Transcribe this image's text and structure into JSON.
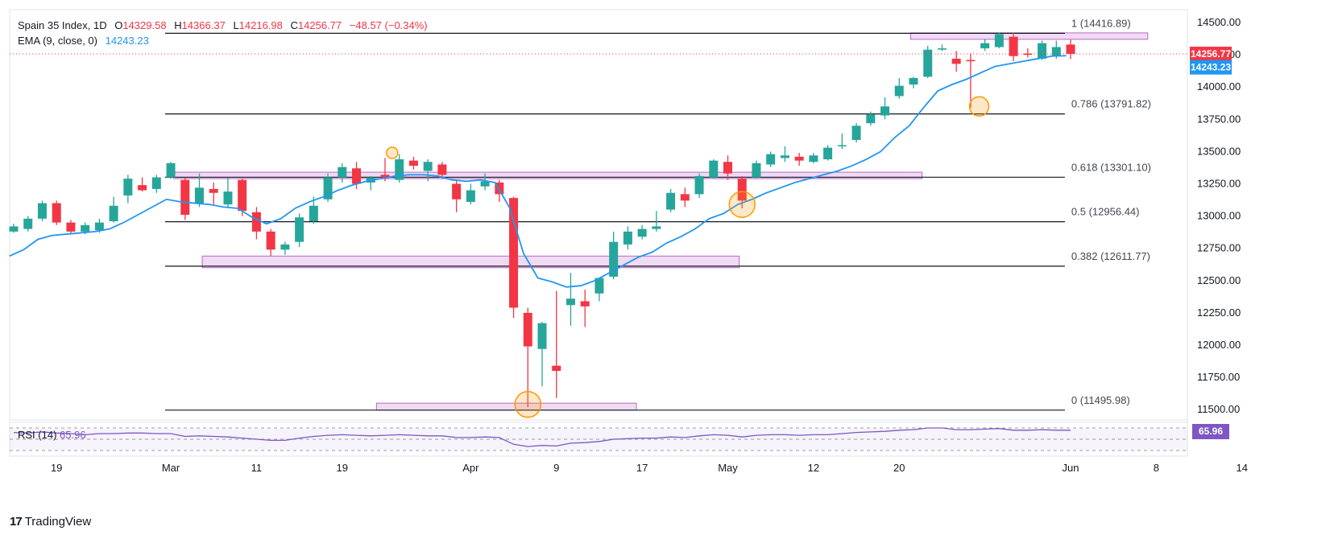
{
  "legend": {
    "symbol": "Spain 35 Index, 1D",
    "open_label": "O",
    "open": "14329.58",
    "high_label": "H",
    "high": "14366.37",
    "low_label": "L",
    "low": "14216.98",
    "close_label": "C",
    "close": "14256.77",
    "change": "−48.57 (−0.34%)",
    "ema_label": "EMA (9, close, 0)",
    "ema_value": "14243.23"
  },
  "rsi": {
    "label": "RSI (14)",
    "value": "65.96",
    "badge": "65.96"
  },
  "footer": {
    "brand": "TradingView",
    "logo_glyph": "17"
  },
  "colors": {
    "up": "#26a69a",
    "down": "#f23645",
    "ema": "#2196f3",
    "rsi": "#7e57c2",
    "zone": "#e1bee7",
    "zone_border": "#ba68c8",
    "highlight": "#ff9800",
    "fib_line": "#131722",
    "price_line": "#f23645"
  },
  "chart_data": {
    "type": "candlestick",
    "title": "Spain 35 Index, 1D",
    "ylim": [
      11420,
      14600
    ],
    "y_ticks": [
      11500,
      11750,
      12000,
      12250,
      12500,
      12750,
      13000,
      13250,
      13500,
      13750,
      14000,
      14250,
      14500
    ],
    "y_tick_labels": [
      "11500.00",
      "11750.00",
      "12000.00",
      "12250.00",
      "12500.00",
      "12750.00",
      "13000.00",
      "13250.00",
      "13500.00",
      "13750.00",
      "14000.00",
      "14250.00",
      "14500.00"
    ],
    "x_tick_labels": [
      "19",
      "Mar",
      "11",
      "19",
      "Apr",
      "9",
      "17",
      "May",
      "12",
      "20",
      "Jun",
      "8",
      "14"
    ],
    "x_tick_index": [
      3,
      11,
      17,
      23,
      32,
      38,
      44,
      50,
      56,
      62,
      74,
      80,
      86
    ],
    "price_badge": "14256.77",
    "ema_badge": "14243.23",
    "fib_levels": [
      {
        "label": "1 (14416.89)",
        "value": 14416.89
      },
      {
        "label": "0.786 (13791.82)",
        "value": 13791.82
      },
      {
        "label": "0.618 (13301.10)",
        "value": 13301.1
      },
      {
        "label": "0.5 (12956.44)",
        "value": 12956.44
      },
      {
        "label": "0.382 (12611.77)",
        "value": 12611.77
      },
      {
        "label": "0 (11495.98)",
        "value": 11495.98
      }
    ],
    "zones": [
      {
        "x0": 62.8,
        "x1": 79.4,
        "y0": 14370,
        "y1": 14420
      },
      {
        "x0": 11.2,
        "x1": 63.6,
        "y0": 13290,
        "y1": 13340
      },
      {
        "x0": 13.2,
        "x1": 50.8,
        "y0": 12600,
        "y1": 12690
      },
      {
        "x0": 25.4,
        "x1": 43.6,
        "y0": 11495,
        "y1": 11550
      }
    ],
    "highlights": [
      {
        "x": 26.5,
        "y": 13490,
        "r": 7
      },
      {
        "x": 36,
        "y": 11540,
        "r": 16
      },
      {
        "x": 51,
        "y": 13090,
        "r": 16
      },
      {
        "x": 67.6,
        "y": 13850,
        "r": 12
      }
    ],
    "candles": [
      {
        "o": 12880,
        "h": 12940,
        "l": 12870,
        "c": 12920
      },
      {
        "o": 12900,
        "h": 13000,
        "l": 12880,
        "c": 12980
      },
      {
        "o": 12980,
        "h": 13120,
        "l": 12960,
        "c": 13100
      },
      {
        "o": 13100,
        "h": 13120,
        "l": 12930,
        "c": 12950
      },
      {
        "o": 12950,
        "h": 12970,
        "l": 12860,
        "c": 12880
      },
      {
        "o": 12880,
        "h": 12950,
        "l": 12860,
        "c": 12930
      },
      {
        "o": 12890,
        "h": 12980,
        "l": 12870,
        "c": 12950
      },
      {
        "o": 12960,
        "h": 13150,
        "l": 12950,
        "c": 13080
      },
      {
        "o": 13160,
        "h": 13320,
        "l": 13100,
        "c": 13290
      },
      {
        "o": 13240,
        "h": 13300,
        "l": 13190,
        "c": 13200
      },
      {
        "o": 13210,
        "h": 13320,
        "l": 13180,
        "c": 13300
      },
      {
        "o": 13300,
        "h": 13420,
        "l": 13290,
        "c": 13410
      },
      {
        "o": 13280,
        "h": 13300,
        "l": 12970,
        "c": 13010
      },
      {
        "o": 13100,
        "h": 13330,
        "l": 13070,
        "c": 13220
      },
      {
        "o": 13210,
        "h": 13260,
        "l": 13090,
        "c": 13180
      },
      {
        "o": 13090,
        "h": 13300,
        "l": 13070,
        "c": 13190
      },
      {
        "o": 13280,
        "h": 13290,
        "l": 13000,
        "c": 13040
      },
      {
        "o": 13030,
        "h": 13070,
        "l": 12820,
        "c": 12880
      },
      {
        "o": 12880,
        "h": 12900,
        "l": 12690,
        "c": 12740
      },
      {
        "o": 12740,
        "h": 12800,
        "l": 12700,
        "c": 12780
      },
      {
        "o": 12800,
        "h": 13020,
        "l": 12760,
        "c": 12990
      },
      {
        "o": 12960,
        "h": 13150,
        "l": 12940,
        "c": 13080
      },
      {
        "o": 13130,
        "h": 13330,
        "l": 13110,
        "c": 13300
      },
      {
        "o": 13300,
        "h": 13410,
        "l": 13260,
        "c": 13380
      },
      {
        "o": 13370,
        "h": 13420,
        "l": 13210,
        "c": 13250
      },
      {
        "o": 13260,
        "h": 13310,
        "l": 13200,
        "c": 13300
      },
      {
        "o": 13320,
        "h": 13450,
        "l": 13270,
        "c": 13300
      },
      {
        "o": 13280,
        "h": 13480,
        "l": 13260,
        "c": 13440
      },
      {
        "o": 13430,
        "h": 13460,
        "l": 13360,
        "c": 13390
      },
      {
        "o": 13350,
        "h": 13440,
        "l": 13270,
        "c": 13420
      },
      {
        "o": 13400,
        "h": 13420,
        "l": 13290,
        "c": 13320
      },
      {
        "o": 13250,
        "h": 13280,
        "l": 13030,
        "c": 13130
      },
      {
        "o": 13110,
        "h": 13250,
        "l": 13090,
        "c": 13200
      },
      {
        "o": 13230,
        "h": 13330,
        "l": 13200,
        "c": 13270
      },
      {
        "o": 13260,
        "h": 13280,
        "l": 13110,
        "c": 13170
      },
      {
        "o": 13140,
        "h": 13150,
        "l": 12210,
        "c": 12290
      },
      {
        "o": 12250,
        "h": 12290,
        "l": 11520,
        "c": 11990
      },
      {
        "o": 11970,
        "h": 12180,
        "l": 11680,
        "c": 12170
      },
      {
        "o": 11840,
        "h": 12420,
        "l": 11590,
        "c": 11800
      },
      {
        "o": 12310,
        "h": 12560,
        "l": 12150,
        "c": 12360
      },
      {
        "o": 12340,
        "h": 12430,
        "l": 12140,
        "c": 12300
      },
      {
        "o": 12400,
        "h": 12520,
        "l": 12340,
        "c": 12520
      },
      {
        "o": 12530,
        "h": 12880,
        "l": 12510,
        "c": 12800
      },
      {
        "o": 12780,
        "h": 12920,
        "l": 12740,
        "c": 12880
      },
      {
        "o": 12840,
        "h": 12930,
        "l": 12820,
        "c": 12900
      },
      {
        "o": 12900,
        "h": 13040,
        "l": 12880,
        "c": 12920
      },
      {
        "o": 13050,
        "h": 13210,
        "l": 13030,
        "c": 13180
      },
      {
        "o": 13170,
        "h": 13220,
        "l": 13070,
        "c": 13120
      },
      {
        "o": 13170,
        "h": 13330,
        "l": 13140,
        "c": 13310
      },
      {
        "o": 13300,
        "h": 13440,
        "l": 13290,
        "c": 13430
      },
      {
        "o": 13420,
        "h": 13470,
        "l": 13280,
        "c": 13330
      },
      {
        "o": 13290,
        "h": 13310,
        "l": 13060,
        "c": 13120
      },
      {
        "o": 13300,
        "h": 13430,
        "l": 13290,
        "c": 13410
      },
      {
        "o": 13400,
        "h": 13500,
        "l": 13380,
        "c": 13480
      },
      {
        "o": 13450,
        "h": 13540,
        "l": 13420,
        "c": 13470
      },
      {
        "o": 13460,
        "h": 13490,
        "l": 13390,
        "c": 13430
      },
      {
        "o": 13420,
        "h": 13490,
        "l": 13410,
        "c": 13470
      },
      {
        "o": 13440,
        "h": 13550,
        "l": 13430,
        "c": 13530
      },
      {
        "o": 13550,
        "h": 13640,
        "l": 13520,
        "c": 13550
      },
      {
        "o": 13590,
        "h": 13720,
        "l": 13570,
        "c": 13700
      },
      {
        "o": 13720,
        "h": 13810,
        "l": 13700,
        "c": 13790
      },
      {
        "o": 13780,
        "h": 13920,
        "l": 13750,
        "c": 13850
      },
      {
        "o": 13930,
        "h": 14070,
        "l": 13910,
        "c": 14010
      },
      {
        "o": 14020,
        "h": 14080,
        "l": 13990,
        "c": 14070
      },
      {
        "o": 14080,
        "h": 14320,
        "l": 14070,
        "c": 14290
      },
      {
        "o": 14290,
        "h": 14330,
        "l": 14280,
        "c": 14300
      },
      {
        "o": 14220,
        "h": 14280,
        "l": 14120,
        "c": 14180
      },
      {
        "o": 14210,
        "h": 14260,
        "l": 13840,
        "c": 14200
      },
      {
        "o": 14300,
        "h": 14370,
        "l": 14280,
        "c": 14340
      },
      {
        "o": 14310,
        "h": 14420,
        "l": 14300,
        "c": 14410
      },
      {
        "o": 14390,
        "h": 14420,
        "l": 14200,
        "c": 14240
      },
      {
        "o": 14260,
        "h": 14300,
        "l": 14230,
        "c": 14250
      },
      {
        "o": 14220,
        "h": 14360,
        "l": 14210,
        "c": 14340
      },
      {
        "o": 14240,
        "h": 14360,
        "l": 14220,
        "c": 14310
      },
      {
        "o": 14329.58,
        "h": 14366.37,
        "l": 14216.98,
        "c": 14256.77
      }
    ],
    "ema": [
      12690,
      12740,
      12820,
      12850,
      12860,
      12870,
      12880,
      12900,
      12950,
      13010,
      13070,
      13130,
      13110,
      13100,
      13090,
      13070,
      13060,
      12990,
      12940,
      12980,
      13060,
      13110,
      13150,
      13200,
      13240,
      13270,
      13290,
      13310,
      13320,
      13320,
      13310,
      13280,
      13270,
      13280,
      13260,
      13070,
      12710,
      12520,
      12490,
      12450,
      12460,
      12500,
      12560,
      12620,
      12680,
      12720,
      12790,
      12840,
      12900,
      12980,
      13020,
      13090,
      13130,
      13180,
      13220,
      13260,
      13290,
      13320,
      13350,
      13390,
      13440,
      13500,
      13610,
      13700,
      13840,
      13970,
      14020,
      14060,
      14110,
      14160,
      14180,
      14200,
      14220,
      14240,
      14243.23
    ],
    "rsi_values": [
      62,
      61,
      63,
      61,
      60,
      58,
      60,
      60,
      61,
      61,
      60,
      60,
      55,
      56,
      55,
      54,
      52,
      50,
      48,
      48,
      52,
      55,
      57,
      58,
      57,
      56,
      57,
      58,
      57,
      56,
      56,
      53,
      53,
      54,
      53,
      41,
      37,
      39,
      38,
      43,
      44,
      46,
      50,
      51,
      52,
      52,
      54,
      53,
      56,
      58,
      57,
      54,
      57,
      58,
      58,
      57,
      58,
      58,
      60,
      62,
      63,
      64,
      66,
      67,
      70,
      70,
      67,
      67,
      68,
      69,
      66,
      66,
      67,
      66,
      65.96
    ]
  }
}
